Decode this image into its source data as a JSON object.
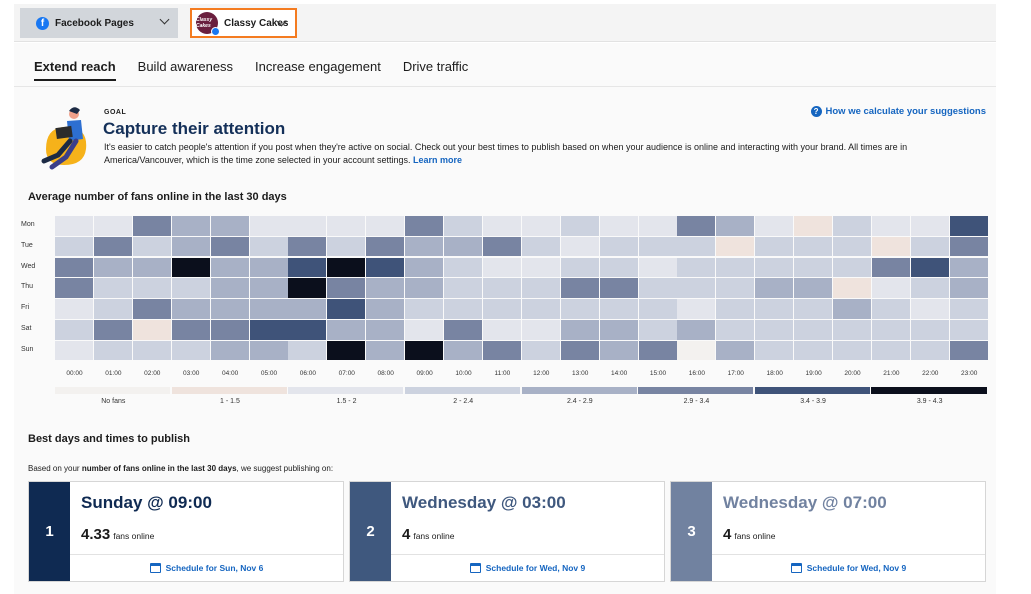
{
  "topbar": {
    "network_select": {
      "label": "Facebook Pages"
    },
    "account_select": {
      "label": "Classy Cakes",
      "avatar_text": "Classy Cakes"
    }
  },
  "tabs": [
    {
      "label": "Extend reach",
      "active": true
    },
    {
      "label": "Build awareness",
      "active": false
    },
    {
      "label": "Increase engagement",
      "active": false
    },
    {
      "label": "Drive traffic",
      "active": false
    }
  ],
  "goal": {
    "label": "GOAL",
    "title": "Capture their attention",
    "description": "It's easier to catch people's attention if you post when they're active on social. Check out your best times to publish based on when your audience is online and interacting with your brand. All times are in America/Vancouver, which is the time zone selected in your account settings.",
    "learn_more": "Learn more",
    "how_link": "How we calculate your suggestions"
  },
  "heatmap": {
    "title": "Average number of fans online in the last 30 days",
    "days": [
      "Mon",
      "Tue",
      "Wed",
      "Thu",
      "Fri",
      "Sat",
      "Sun"
    ],
    "hours": [
      "00:00",
      "01:00",
      "02:00",
      "03:00",
      "04:00",
      "05:00",
      "06:00",
      "07:00",
      "08:00",
      "09:00",
      "10:00",
      "11:00",
      "12:00",
      "13:00",
      "14:00",
      "15:00",
      "16:00",
      "17:00",
      "18:00",
      "19:00",
      "20:00",
      "21:00",
      "22:00",
      "23:00"
    ],
    "legend": [
      {
        "label": "No fans",
        "color": "#f3f1ef"
      },
      {
        "label": "1 - 1.5",
        "color": "#efe3dd"
      },
      {
        "label": "1.5 - 2",
        "color": "#e3e5ec"
      },
      {
        "label": "2 - 2.4",
        "color": "#ccd2df"
      },
      {
        "label": "2.4 - 2.9",
        "color": "#a8b1c6"
      },
      {
        "label": "2.9 - 3.4",
        "color": "#7884a2"
      },
      {
        "label": "3.4 - 3.9",
        "color": "#3f5379"
      },
      {
        "label": "3.9 - 4.3",
        "color": "#0b0f1c"
      }
    ],
    "levels": [
      [
        2,
        2,
        5,
        4,
        4,
        2,
        2,
        2,
        2,
        5,
        3,
        2,
        2,
        3,
        2,
        2,
        5,
        4,
        2,
        1,
        3,
        2,
        2,
        6
      ],
      [
        3,
        5,
        3,
        4,
        5,
        3,
        5,
        3,
        5,
        4,
        4,
        5,
        3,
        2,
        3,
        3,
        3,
        1,
        3,
        3,
        3,
        1,
        3,
        5
      ],
      [
        5,
        4,
        4,
        7,
        4,
        4,
        6,
        7,
        6,
        4,
        3,
        2,
        2,
        3,
        3,
        2,
        3,
        3,
        3,
        3,
        3,
        5,
        6,
        4
      ],
      [
        5,
        3,
        3,
        3,
        4,
        4,
        7,
        5,
        4,
        4,
        3,
        3,
        3,
        5,
        5,
        3,
        3,
        3,
        4,
        4,
        1,
        2,
        3,
        4
      ],
      [
        2,
        3,
        5,
        4,
        4,
        4,
        4,
        6,
        4,
        3,
        3,
        3,
        3,
        3,
        3,
        3,
        2,
        3,
        3,
        3,
        4,
        3,
        2,
        3
      ],
      [
        3,
        5,
        1,
        5,
        5,
        6,
        6,
        4,
        4,
        2,
        5,
        2,
        2,
        4,
        4,
        3,
        4,
        3,
        3,
        3,
        3,
        3,
        3,
        3
      ],
      [
        2,
        3,
        3,
        3,
        4,
        4,
        3,
        7,
        4,
        7,
        4,
        5,
        3,
        5,
        4,
        5,
        0,
        4,
        3,
        3,
        3,
        3,
        3,
        5
      ]
    ]
  },
  "best": {
    "title": "Best days and times to publish",
    "subtitle_prefix": "Based on your",
    "subtitle_bold": "number of fans online in the last 30 days",
    "subtitle_suffix": ", we suggest publishing on:",
    "fans_unit": "fans online",
    "cards": [
      {
        "rank": "1",
        "when": "Sunday @ 09:00",
        "fans": "4.33",
        "schedule": "Schedule for Sun, Nov 6",
        "color": "#0f2a52",
        "text_color": "#0f2a52"
      },
      {
        "rank": "2",
        "when": "Wednesday @ 03:00",
        "fans": "4",
        "schedule": "Schedule for Wed, Nov 9",
        "color": "#3f587e",
        "text_color": "#3f587e"
      },
      {
        "rank": "3",
        "when": "Wednesday @ 07:00",
        "fans": "4",
        "schedule": "Schedule for Wed, Nov 9",
        "color": "#7182a0",
        "text_color": "#7182a0"
      }
    ]
  }
}
